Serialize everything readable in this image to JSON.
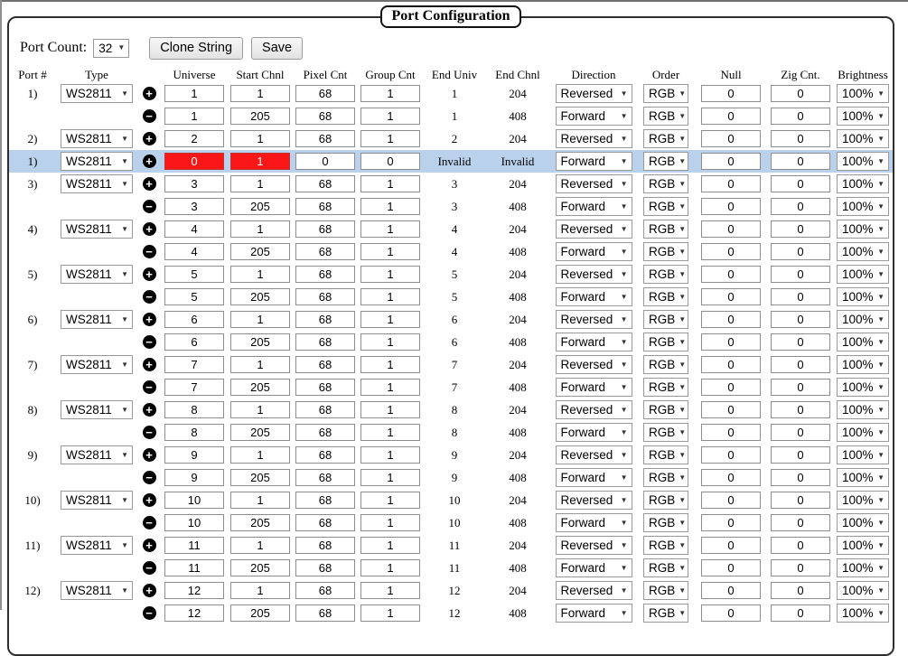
{
  "page": {
    "title": "Port Configuration"
  },
  "icons": {
    "plus": "+",
    "minus": "−",
    "dropdown_arrow": "▼"
  },
  "colors": {
    "highlight_row_bg": "#b9d1ea",
    "invalid_input_bg": "#fb1717",
    "invalid_input_text": "#ffffff"
  },
  "toolbar": {
    "port_count_label": "Port Count:",
    "port_count_value": "32",
    "clone_string_label": "Clone String",
    "save_label": "Save"
  },
  "table": {
    "headers": [
      "Port #",
      "Type",
      "",
      "Universe",
      "Start Chnl",
      "Pixel Cnt",
      "Group Cnt",
      "End Univ",
      "End Chnl",
      "Direction",
      "Order",
      "Null",
      "Zig Cnt.",
      "Brightness"
    ],
    "rows": [
      {
        "port": "1)",
        "type": "WS2811",
        "expander": "plus",
        "universe": "1",
        "start_chnl": "1",
        "pixel_cnt": "68",
        "group_cnt": "1",
        "end_univ": "1",
        "end_chnl": "204",
        "direction": "Reversed",
        "order": "RGB",
        "null_cnt": "0",
        "zig_cnt": "0",
        "brightness": "100%",
        "highlighted": false,
        "invalid_fields": []
      },
      {
        "port": "",
        "type": "",
        "expander": "minus",
        "universe": "1",
        "start_chnl": "205",
        "pixel_cnt": "68",
        "group_cnt": "1",
        "end_univ": "1",
        "end_chnl": "408",
        "direction": "Forward",
        "order": "RGB",
        "null_cnt": "0",
        "zig_cnt": "0",
        "brightness": "100%",
        "highlighted": false,
        "invalid_fields": []
      },
      {
        "port": "2)",
        "type": "WS2811",
        "expander": "plus",
        "universe": "2",
        "start_chnl": "1",
        "pixel_cnt": "68",
        "group_cnt": "1",
        "end_univ": "2",
        "end_chnl": "204",
        "direction": "Reversed",
        "order": "RGB",
        "null_cnt": "0",
        "zig_cnt": "0",
        "brightness": "100%",
        "highlighted": false,
        "invalid_fields": []
      },
      {
        "port": "1)",
        "type": "WS2811",
        "expander": "plus",
        "universe": "0",
        "start_chnl": "1",
        "pixel_cnt": "0",
        "group_cnt": "0",
        "end_univ": "Invalid",
        "end_chnl": "Invalid",
        "direction": "Forward",
        "order": "RGB",
        "null_cnt": "0",
        "zig_cnt": "0",
        "brightness": "100%",
        "highlighted": true,
        "invalid_fields": [
          "universe",
          "start_chnl"
        ]
      },
      {
        "port": "3)",
        "type": "WS2811",
        "expander": "plus",
        "universe": "3",
        "start_chnl": "1",
        "pixel_cnt": "68",
        "group_cnt": "1",
        "end_univ": "3",
        "end_chnl": "204",
        "direction": "Reversed",
        "order": "RGB",
        "null_cnt": "0",
        "zig_cnt": "0",
        "brightness": "100%",
        "highlighted": false,
        "invalid_fields": []
      },
      {
        "port": "",
        "type": "",
        "expander": "minus",
        "universe": "3",
        "start_chnl": "205",
        "pixel_cnt": "68",
        "group_cnt": "1",
        "end_univ": "3",
        "end_chnl": "408",
        "direction": "Forward",
        "order": "RGB",
        "null_cnt": "0",
        "zig_cnt": "0",
        "brightness": "100%",
        "highlighted": false,
        "invalid_fields": []
      },
      {
        "port": "4)",
        "type": "WS2811",
        "expander": "plus",
        "universe": "4",
        "start_chnl": "1",
        "pixel_cnt": "68",
        "group_cnt": "1",
        "end_univ": "4",
        "end_chnl": "204",
        "direction": "Reversed",
        "order": "RGB",
        "null_cnt": "0",
        "zig_cnt": "0",
        "brightness": "100%",
        "highlighted": false,
        "invalid_fields": []
      },
      {
        "port": "",
        "type": "",
        "expander": "minus",
        "universe": "4",
        "start_chnl": "205",
        "pixel_cnt": "68",
        "group_cnt": "1",
        "end_univ": "4",
        "end_chnl": "408",
        "direction": "Forward",
        "order": "RGB",
        "null_cnt": "0",
        "zig_cnt": "0",
        "brightness": "100%",
        "highlighted": false,
        "invalid_fields": []
      },
      {
        "port": "5)",
        "type": "WS2811",
        "expander": "plus",
        "universe": "5",
        "start_chnl": "1",
        "pixel_cnt": "68",
        "group_cnt": "1",
        "end_univ": "5",
        "end_chnl": "204",
        "direction": "Reversed",
        "order": "RGB",
        "null_cnt": "0",
        "zig_cnt": "0",
        "brightness": "100%",
        "highlighted": false,
        "invalid_fields": []
      },
      {
        "port": "",
        "type": "",
        "expander": "minus",
        "universe": "5",
        "start_chnl": "205",
        "pixel_cnt": "68",
        "group_cnt": "1",
        "end_univ": "5",
        "end_chnl": "408",
        "direction": "Forward",
        "order": "RGB",
        "null_cnt": "0",
        "zig_cnt": "0",
        "brightness": "100%",
        "highlighted": false,
        "invalid_fields": []
      },
      {
        "port": "6)",
        "type": "WS2811",
        "expander": "plus",
        "universe": "6",
        "start_chnl": "1",
        "pixel_cnt": "68",
        "group_cnt": "1",
        "end_univ": "6",
        "end_chnl": "204",
        "direction": "Reversed",
        "order": "RGB",
        "null_cnt": "0",
        "zig_cnt": "0",
        "brightness": "100%",
        "highlighted": false,
        "invalid_fields": []
      },
      {
        "port": "",
        "type": "",
        "expander": "minus",
        "universe": "6",
        "start_chnl": "205",
        "pixel_cnt": "68",
        "group_cnt": "1",
        "end_univ": "6",
        "end_chnl": "408",
        "direction": "Forward",
        "order": "RGB",
        "null_cnt": "0",
        "zig_cnt": "0",
        "brightness": "100%",
        "highlighted": false,
        "invalid_fields": []
      },
      {
        "port": "7)",
        "type": "WS2811",
        "expander": "plus",
        "universe": "7",
        "start_chnl": "1",
        "pixel_cnt": "68",
        "group_cnt": "1",
        "end_univ": "7",
        "end_chnl": "204",
        "direction": "Reversed",
        "order": "RGB",
        "null_cnt": "0",
        "zig_cnt": "0",
        "brightness": "100%",
        "highlighted": false,
        "invalid_fields": []
      },
      {
        "port": "",
        "type": "",
        "expander": "minus",
        "universe": "7",
        "start_chnl": "205",
        "pixel_cnt": "68",
        "group_cnt": "1",
        "end_univ": "7",
        "end_chnl": "408",
        "direction": "Forward",
        "order": "RGB",
        "null_cnt": "0",
        "zig_cnt": "0",
        "brightness": "100%",
        "highlighted": false,
        "invalid_fields": []
      },
      {
        "port": "8)",
        "type": "WS2811",
        "expander": "plus",
        "universe": "8",
        "start_chnl": "1",
        "pixel_cnt": "68",
        "group_cnt": "1",
        "end_univ": "8",
        "end_chnl": "204",
        "direction": "Reversed",
        "order": "RGB",
        "null_cnt": "0",
        "zig_cnt": "0",
        "brightness": "100%",
        "highlighted": false,
        "invalid_fields": []
      },
      {
        "port": "",
        "type": "",
        "expander": "minus",
        "universe": "8",
        "start_chnl": "205",
        "pixel_cnt": "68",
        "group_cnt": "1",
        "end_univ": "8",
        "end_chnl": "408",
        "direction": "Forward",
        "order": "RGB",
        "null_cnt": "0",
        "zig_cnt": "0",
        "brightness": "100%",
        "highlighted": false,
        "invalid_fields": []
      },
      {
        "port": "9)",
        "type": "WS2811",
        "expander": "plus",
        "universe": "9",
        "start_chnl": "1",
        "pixel_cnt": "68",
        "group_cnt": "1",
        "end_univ": "9",
        "end_chnl": "204",
        "direction": "Reversed",
        "order": "RGB",
        "null_cnt": "0",
        "zig_cnt": "0",
        "brightness": "100%",
        "highlighted": false,
        "invalid_fields": []
      },
      {
        "port": "",
        "type": "",
        "expander": "minus",
        "universe": "9",
        "start_chnl": "205",
        "pixel_cnt": "68",
        "group_cnt": "1",
        "end_univ": "9",
        "end_chnl": "408",
        "direction": "Forward",
        "order": "RGB",
        "null_cnt": "0",
        "zig_cnt": "0",
        "brightness": "100%",
        "highlighted": false,
        "invalid_fields": []
      },
      {
        "port": "10)",
        "type": "WS2811",
        "expander": "plus",
        "universe": "10",
        "start_chnl": "1",
        "pixel_cnt": "68",
        "group_cnt": "1",
        "end_univ": "10",
        "end_chnl": "204",
        "direction": "Reversed",
        "order": "RGB",
        "null_cnt": "0",
        "zig_cnt": "0",
        "brightness": "100%",
        "highlighted": false,
        "invalid_fields": []
      },
      {
        "port": "",
        "type": "",
        "expander": "minus",
        "universe": "10",
        "start_chnl": "205",
        "pixel_cnt": "68",
        "group_cnt": "1",
        "end_univ": "10",
        "end_chnl": "408",
        "direction": "Forward",
        "order": "RGB",
        "null_cnt": "0",
        "zig_cnt": "0",
        "brightness": "100%",
        "highlighted": false,
        "invalid_fields": []
      },
      {
        "port": "11)",
        "type": "WS2811",
        "expander": "plus",
        "universe": "11",
        "start_chnl": "1",
        "pixel_cnt": "68",
        "group_cnt": "1",
        "end_univ": "11",
        "end_chnl": "204",
        "direction": "Reversed",
        "order": "RGB",
        "null_cnt": "0",
        "zig_cnt": "0",
        "brightness": "100%",
        "highlighted": false,
        "invalid_fields": []
      },
      {
        "port": "",
        "type": "",
        "expander": "minus",
        "universe": "11",
        "start_chnl": "205",
        "pixel_cnt": "68",
        "group_cnt": "1",
        "end_univ": "11",
        "end_chnl": "408",
        "direction": "Forward",
        "order": "RGB",
        "null_cnt": "0",
        "zig_cnt": "0",
        "brightness": "100%",
        "highlighted": false,
        "invalid_fields": []
      },
      {
        "port": "12)",
        "type": "WS2811",
        "expander": "plus",
        "universe": "12",
        "start_chnl": "1",
        "pixel_cnt": "68",
        "group_cnt": "1",
        "end_univ": "12",
        "end_chnl": "204",
        "direction": "Reversed",
        "order": "RGB",
        "null_cnt": "0",
        "zig_cnt": "0",
        "brightness": "100%",
        "highlighted": false,
        "invalid_fields": []
      },
      {
        "port": "",
        "type": "",
        "expander": "minus",
        "universe": "12",
        "start_chnl": "205",
        "pixel_cnt": "68",
        "group_cnt": "1",
        "end_univ": "12",
        "end_chnl": "408",
        "direction": "Forward",
        "order": "RGB",
        "null_cnt": "0",
        "zig_cnt": "0",
        "brightness": "100%",
        "highlighted": false,
        "invalid_fields": []
      }
    ]
  }
}
